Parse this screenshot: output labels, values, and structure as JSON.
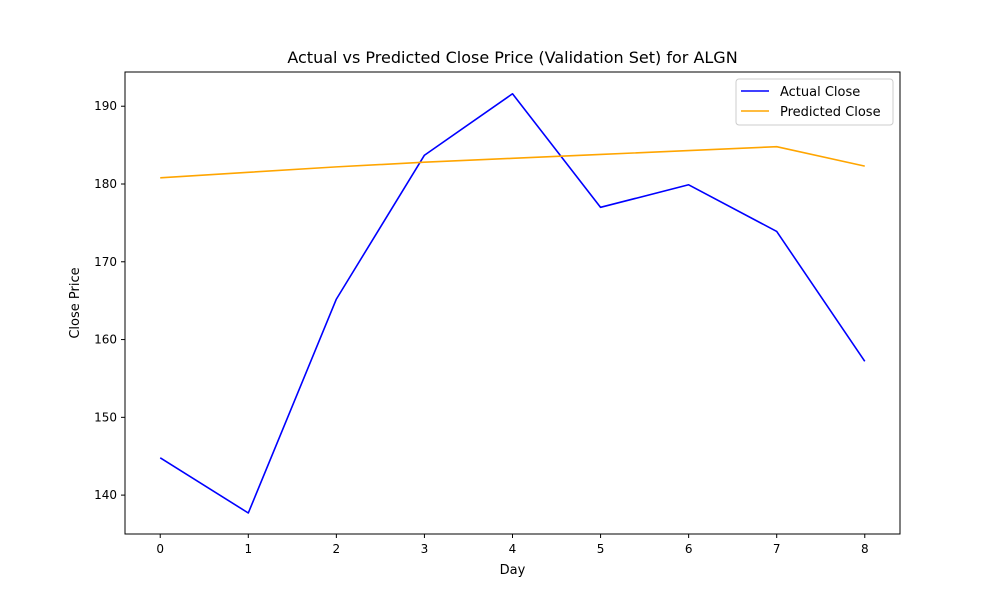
{
  "chart_data": {
    "type": "line",
    "title": "Actual vs Predicted Close Price (Validation Set) for ALGN",
    "xlabel": "Day",
    "ylabel": "Close Price",
    "x": [
      0,
      1,
      2,
      3,
      4,
      5,
      6,
      7,
      8
    ],
    "xticks": [
      0,
      1,
      2,
      3,
      4,
      5,
      6,
      7,
      8
    ],
    "yticks": [
      140,
      150,
      160,
      170,
      180,
      190
    ],
    "xlim": [
      -0.4,
      8.4
    ],
    "ylim": [
      135.0,
      194.4
    ],
    "grid": false,
    "legend_position": "top-right",
    "series": [
      {
        "name": "Actual Close",
        "color": "#0000ff",
        "values": [
          144.8,
          137.7,
          165.2,
          183.7,
          191.6,
          177.0,
          179.9,
          173.9,
          157.2
        ]
      },
      {
        "name": "Predicted Close",
        "color": "#ffa500",
        "values": [
          180.8,
          181.5,
          182.2,
          182.8,
          183.3,
          183.8,
          184.3,
          184.8,
          182.3
        ]
      }
    ]
  }
}
